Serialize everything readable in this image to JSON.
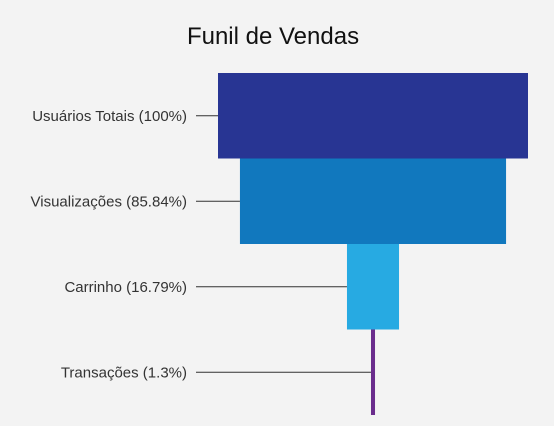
{
  "chart_data": {
    "type": "funnel",
    "title": "Funil de Vendas",
    "stages": [
      {
        "label": "Usuários Totais (100%)",
        "value": 100,
        "color": "#283593"
      },
      {
        "label": "Visualizações (85.84%)",
        "value": 85.84,
        "color": "#1178be"
      },
      {
        "label": "Carrinho (16.79%)",
        "value": 16.79,
        "color": "#27aae2"
      },
      {
        "label": "Transações (1.3%)",
        "value": 1.3,
        "color": "#6a2c8c"
      }
    ]
  }
}
